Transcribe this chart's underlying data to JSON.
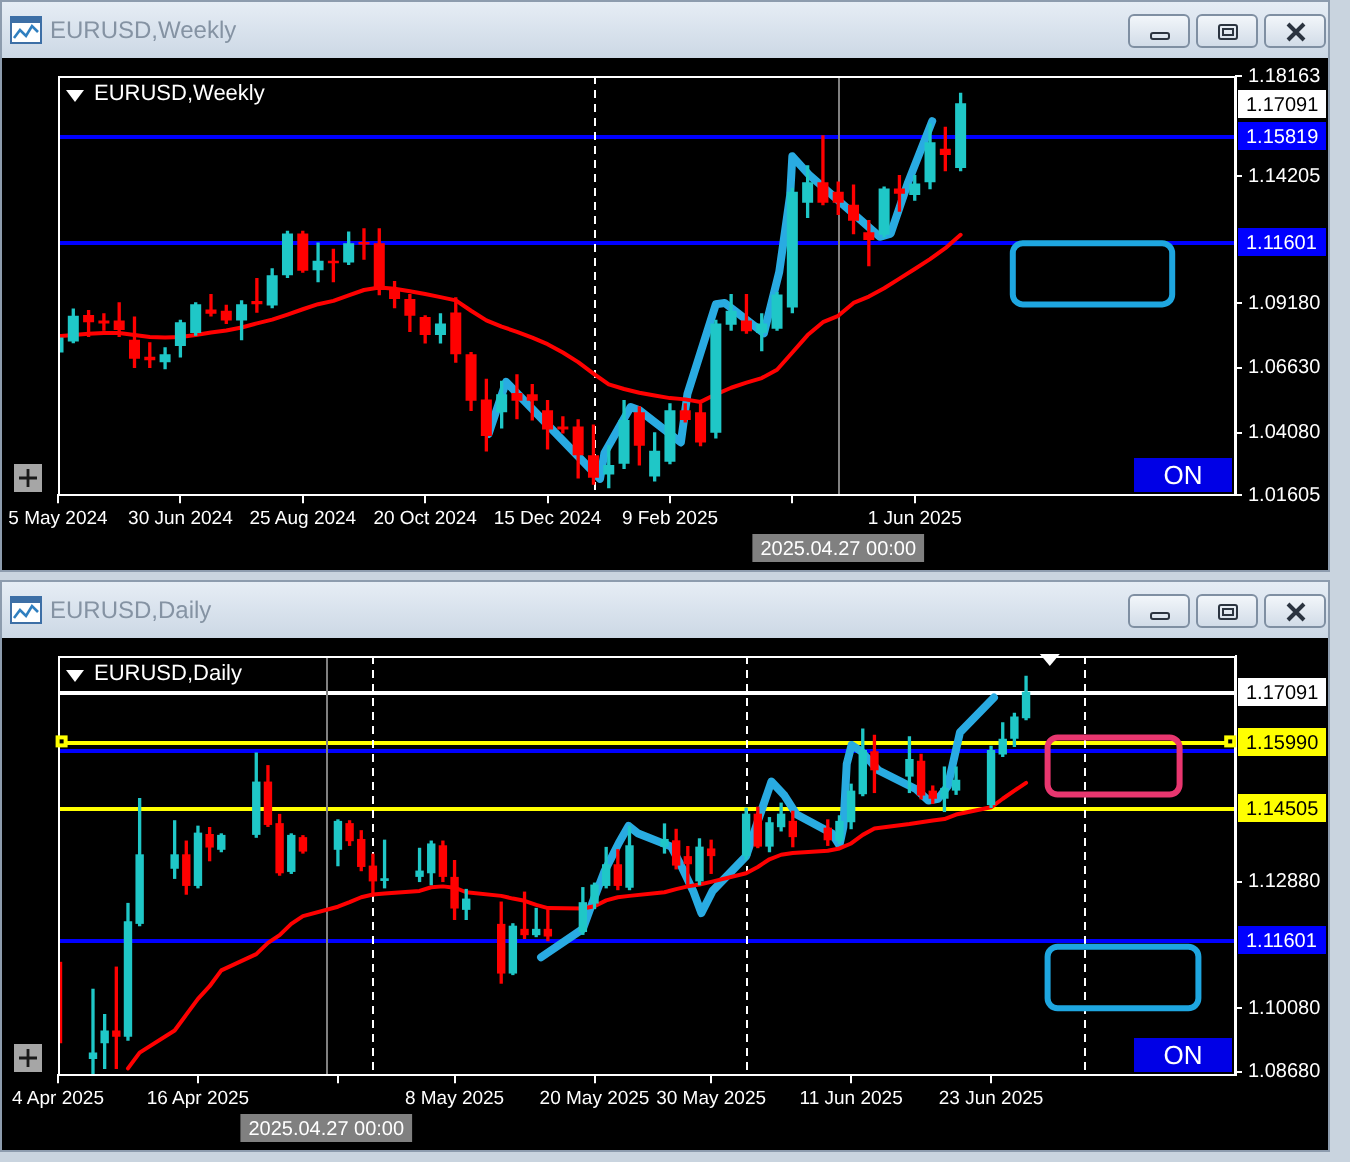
{
  "chart_data": [
    {
      "type": "candlestick",
      "title": "EURUSD,Weekly",
      "x": [
        "2024-05-05",
        "2024-05-12",
        "2024-05-19",
        "2024-05-26",
        "2024-06-02",
        "2024-06-09",
        "2024-06-16",
        "2024-06-23",
        "2024-06-30",
        "2024-07-07",
        "2024-07-14",
        "2024-07-21",
        "2024-07-28",
        "2024-08-04",
        "2024-08-11",
        "2024-08-18",
        "2024-08-25",
        "2024-09-01",
        "2024-09-08",
        "2024-09-15",
        "2024-09-22",
        "2024-09-29",
        "2024-10-06",
        "2024-10-13",
        "2024-10-20",
        "2024-10-27",
        "2024-11-03",
        "2024-11-10",
        "2024-11-17",
        "2024-11-24",
        "2024-12-01",
        "2024-12-08",
        "2024-12-15",
        "2024-12-22",
        "2024-12-29",
        "2025-01-05",
        "2025-01-12",
        "2025-01-19",
        "2025-01-26",
        "2025-02-02",
        "2025-02-09",
        "2025-02-16",
        "2025-02-23",
        "2025-03-02",
        "2025-03-09",
        "2025-03-16",
        "2025-03-23",
        "2025-03-30",
        "2025-04-06",
        "2025-04-13",
        "2025-04-20",
        "2025-04-27",
        "2025-05-04",
        "2025-05-11",
        "2025-05-18",
        "2025-05-25",
        "2025-06-01",
        "2025-06-08",
        "2025-06-15",
        "2025-06-22"
      ],
      "xlim": [
        "2024-05-05",
        "2025-10-26"
      ],
      "xticks": [
        {
          "value": "2024-05-05",
          "label": "5 May 2024"
        },
        {
          "value": "2024-06-30",
          "label": "30 Jun 2024"
        },
        {
          "value": "2024-08-25",
          "label": "25 Aug 2024"
        },
        {
          "value": "2024-10-20",
          "label": "20 Oct 2024"
        },
        {
          "value": "2024-12-15",
          "label": "15 Dec 2024"
        },
        {
          "value": "2025-02-09",
          "label": "9 Feb 2025"
        },
        {
          "value": "2025-04-06",
          "label": null
        },
        {
          "value": "2025-06-01",
          "label": "1 Jun 2025"
        }
      ],
      "ohlc": [
        [
          1.0724,
          1.0793,
          1.0712,
          1.0783
        ],
        [
          1.0768,
          1.0895,
          1.0763,
          1.0869
        ],
        [
          1.0872,
          1.0889,
          1.0788,
          1.0844
        ],
        [
          1.0851,
          1.0877,
          1.0813,
          1.0839
        ],
        [
          1.0851,
          1.092,
          1.0788,
          1.0813
        ],
        [
          1.0775,
          1.0864,
          1.0666,
          1.0699
        ],
        [
          1.0707,
          1.0762,
          1.0666,
          1.0694
        ],
        [
          1.0686,
          1.0742,
          1.0661,
          1.0717
        ],
        [
          1.075,
          1.0851,
          1.0707,
          1.0844
        ],
        [
          1.0801,
          1.092,
          1.0793,
          1.0915
        ],
        [
          1.0894,
          1.0953,
          1.0869,
          1.0877
        ],
        [
          1.0889,
          1.091,
          1.0839,
          1.0851
        ],
        [
          1.0851,
          1.0928,
          1.0775,
          1.0915
        ],
        [
          1.0928,
          1.1016,
          1.0884,
          1.0915
        ],
        [
          1.091,
          1.1054,
          1.0902,
          1.1029
        ],
        [
          1.1029,
          1.1202,
          1.1021,
          1.1194
        ],
        [
          1.1194,
          1.1202,
          1.1042,
          1.1047
        ],
        [
          1.1049,
          1.1156,
          1.1004,
          1.1087
        ],
        [
          1.1087,
          1.1131,
          1.1004,
          1.1077
        ],
        [
          1.108,
          1.1199,
          1.1072,
          1.1156
        ],
        [
          1.1161,
          1.1212,
          1.1093,
          1.1151
        ],
        [
          1.1156,
          1.1212,
          1.0953,
          1.0971
        ],
        [
          1.0971,
          1.1004,
          1.0902,
          1.0935
        ],
        [
          1.0935,
          1.0953,
          1.0808,
          1.0869
        ],
        [
          1.0864,
          1.0869,
          1.0762,
          1.0793
        ],
        [
          1.0793,
          1.0877,
          1.0762,
          1.0839
        ],
        [
          1.0882,
          1.094,
          1.0686,
          1.0717
        ],
        [
          1.0717,
          1.0724,
          1.0496,
          1.0534
        ],
        [
          1.0539,
          1.0618,
          1.0336,
          1.0394
        ],
        [
          1.0488,
          1.061,
          1.0427,
          1.0559
        ],
        [
          1.0564,
          1.0636,
          1.0463,
          1.0534
        ],
        [
          1.0559,
          1.0597,
          1.0458,
          1.0534
        ],
        [
          1.0496,
          1.0534,
          1.0344,
          1.042
        ],
        [
          1.0432,
          1.047,
          1.0407,
          1.042
        ],
        [
          1.0432,
          1.0458,
          1.0229,
          1.0318
        ],
        [
          1.0318,
          1.0437,
          1.0204,
          1.0229
        ],
        [
          1.0242,
          1.0356,
          1.0191,
          1.028
        ],
        [
          1.0285,
          1.0534,
          1.0267,
          1.0458
        ],
        [
          1.0488,
          1.0509,
          1.028,
          1.0356
        ],
        [
          1.0234,
          1.0407,
          1.0217,
          1.0336
        ],
        [
          1.0293,
          1.0521,
          1.0285,
          1.0496
        ],
        [
          1.0496,
          1.0521,
          1.045,
          1.0458
        ],
        [
          1.0488,
          1.0521,
          1.0356,
          1.0369
        ],
        [
          1.0407,
          1.0851,
          1.0387,
          1.0839
        ],
        [
          1.0834,
          1.0953,
          1.0813,
          1.0889
        ],
        [
          1.0851,
          1.0953,
          1.0801,
          1.0808
        ],
        [
          1.0801,
          1.0877,
          1.0732,
          1.0839
        ],
        [
          1.0818,
          1.0961,
          1.0813,
          1.0953
        ],
        [
          1.0902,
          1.1372,
          1.0882,
          1.1359
        ],
        [
          1.1316,
          1.1461,
          1.1258,
          1.1397
        ],
        [
          1.1397,
          1.158,
          1.1308,
          1.1316
        ],
        [
          1.1359,
          1.1397,
          1.127,
          1.1316
        ],
        [
          1.1308,
          1.1385,
          1.1194,
          1.1245
        ],
        [
          1.1199,
          1.1245,
          1.1067,
          1.1169
        ],
        [
          1.1189,
          1.1377,
          1.1181,
          1.1372
        ],
        [
          1.1372,
          1.1423,
          1.1283,
          1.1351
        ],
        [
          1.1346,
          1.1423,
          1.1326,
          1.1392
        ],
        [
          1.1397,
          1.1626,
          1.1372,
          1.1555
        ],
        [
          1.1529,
          1.1613,
          1.1443,
          1.1504
        ],
        [
          1.1453,
          1.1748,
          1.1443,
          1.1709
        ]
      ],
      "colors": [
        "#1fc7c7",
        "#1fc7c7",
        "#ff0000",
        "#ff0000",
        "#ff0000",
        "#ff0000",
        "#ff0000",
        "#1fc7c7",
        "#1fc7c7",
        "#1fc7c7",
        "#ff0000",
        "#ff0000",
        "#1fc7c7",
        "#ff0000",
        "#1fc7c7",
        "#1fc7c7",
        "#ff0000",
        "#1fc7c7",
        "#ff0000",
        "#1fc7c7",
        "#ff0000",
        "#ff0000",
        "#ff0000",
        "#ff0000",
        "#ff0000",
        "#1fc7c7",
        "#ff0000",
        "#ff0000",
        "#ff0000",
        "#1fc7c7",
        "#ff0000",
        "#ff0000",
        "#ff0000",
        "#ff0000",
        "#ff0000",
        "#ff0000",
        "#1fc7c7",
        "#1fc7c7",
        "#ff0000",
        "#1fc7c7",
        "#1fc7c7",
        "#ff0000",
        "#ff0000",
        "#1fc7c7",
        "#1fc7c7",
        "#ff0000",
        "#1fc7c7",
        "#1fc7c7",
        "#1fc7c7",
        "#1fc7c7",
        "#ff0000",
        "#ff0000",
        "#ff0000",
        "#ff0000",
        "#1fc7c7",
        "#ff0000",
        "#1fc7c7",
        "#1fc7c7",
        "#ff0000",
        "#1fc7c7"
      ],
      "series": [
        {
          "type": "line",
          "color": "#ff0000",
          "values": [
            1.0788,
            1.0793,
            1.0798,
            1.0801,
            1.0801,
            1.0793,
            1.0785,
            1.0783,
            1.0785,
            1.0793,
            1.0803,
            1.0811,
            1.0823,
            1.0839,
            1.0854,
            1.0874,
            1.0895,
            1.0915,
            1.0928,
            1.095,
            1.0971,
            1.0981,
            1.0976,
            1.0966,
            1.0955,
            1.0943,
            1.093,
            1.0889,
            1.0851,
            1.0826,
            1.0806,
            1.0783,
            1.0757,
            1.0724,
            1.0686,
            1.0641,
            1.0598,
            1.058,
            1.0565,
            1.0554,
            1.0544,
            1.0539,
            1.0529,
            1.0559,
            1.0585,
            1.0605,
            1.0623,
            1.0656,
            1.0724,
            1.0793,
            1.0844,
            1.0869,
            1.092,
            1.0945,
            1.0978,
            1.1016,
            1.1054,
            1.1093,
            1.1136,
            1.1189
          ]
        },
        {
          "type": "line",
          "color": "#29abe2",
          "x": [
            "2024-11-18",
            "2024-11-26",
            "2025-01-08",
            "2025-01-10",
            "2025-01-22",
            "2025-01-26",
            "2025-02-14",
            "2025-02-17",
            "2025-03-02",
            "2025-03-06",
            "2025-03-24",
            "2025-03-31",
            "2025-04-05",
            "2025-04-06",
            "2025-04-14",
            "2025-05-16",
            "2025-05-21",
            "2025-05-29",
            "2025-06-09"
          ],
          "values": [
            1.0402,
            1.0608,
            1.0225,
            1.0326,
            1.0509,
            1.0496,
            1.0369,
            1.056,
            1.0915,
            1.092,
            1.08,
            1.1042,
            1.1346,
            1.1499,
            1.1423,
            1.1181,
            1.1194,
            1.1397,
            1.1638
          ]
        }
      ],
      "marker": "none",
      "ylim": [
        1.01605,
        1.18163
      ],
      "yticks": [
        1.01605,
        {
          "value": 1.0408,
          "label": "1.04080"
        },
        {
          "value": 1.0663,
          "label": "1.06630"
        },
        {
          "value": 1.0918,
          "label": "1.09180"
        },
        1.14205,
        1.18163
      ],
      "ref_lines": [
        {
          "axis": "y",
          "value": 1.15819,
          "label": "1.15819",
          "color": "#0000ff"
        },
        {
          "axis": "y",
          "value": 1.11601,
          "label": "1.11601",
          "color": "#0000ff"
        },
        {
          "axis": "x",
          "value": "2025-01-05",
          "color": "#ffffff",
          "line_style": "dashed"
        },
        {
          "axis": "x",
          "value": "2025-04-27",
          "label": "2025.04.27 00:00",
          "color": "#808080"
        }
      ],
      "annotations": [
        {
          "text": "1.17091",
          "y": 1.17091
        },
        "ON"
      ]
    },
    {
      "type": "candlestick",
      "title": "EURUSD,Daily",
      "x": [
        "2025-04-04",
        "2025-04-07",
        "2025-04-08",
        "2025-04-09",
        "2025-04-10",
        "2025-04-11",
        "2025-04-14",
        "2025-04-15",
        "2025-04-16",
        "2025-04-17",
        "2025-04-18",
        "2025-04-21",
        "2025-04-22",
        "2025-04-23",
        "2025-04-24",
        "2025-04-25",
        "2025-04-28",
        "2025-04-29",
        "2025-04-30",
        "2025-05-01",
        "2025-05-02",
        "2025-05-05",
        "2025-05-06",
        "2025-05-07",
        "2025-05-08",
        "2025-05-09",
        "2025-05-12",
        "2025-05-13",
        "2025-05-14",
        "2025-05-15",
        "2025-05-16",
        "2025-05-19",
        "2025-05-20",
        "2025-05-21",
        "2025-05-22",
        "2025-05-23",
        "2025-05-26",
        "2025-05-27",
        "2025-05-28",
        "2025-05-29",
        "2025-05-30",
        "2025-06-02",
        "2025-06-03",
        "2025-06-04",
        "2025-06-05",
        "2025-06-06",
        "2025-06-09",
        "2025-06-10",
        "2025-06-11",
        "2025-06-12",
        "2025-06-13",
        "2025-06-16",
        "2025-06-17",
        "2025-06-18",
        "2025-06-19",
        "2025-06-20",
        "2025-06-23",
        "2025-06-24",
        "2025-06-25",
        "2025-06-26"
      ],
      "xlim": [
        "2025-04-04",
        "2025-07-14"
      ],
      "xticks": [
        {
          "value": "2025-04-04",
          "label": "4 Apr 2025"
        },
        {
          "value": "2025-04-16",
          "label": "16 Apr 2025"
        },
        {
          "value": "2025-04-28",
          "label": null
        },
        {
          "value": "2025-05-08",
          "label": "8 May 2025"
        },
        {
          "value": "2025-05-20",
          "label": "20 May 2025"
        },
        {
          "value": "2025-05-30",
          "label": "30 May 2025"
        },
        {
          "value": "2025-06-11",
          "label": "11 Jun 2025"
        },
        {
          "value": "2025-06-23",
          "label": "23 Jun 2025"
        }
      ],
      "ohlc": [
        [
          1.1111,
          1.112,
          1.0924,
          1.0931
        ],
        [
          1.0896,
          1.105,
          1.0861,
          1.091
        ],
        [
          1.0931,
          1.0994,
          1.0875,
          1.0959
        ],
        [
          1.0959,
          1.1099,
          1.0875,
          1.0945
        ],
        [
          1.0945,
          1.124,
          1.0938,
          1.1201
        ],
        [
          1.1195,
          1.1472,
          1.1191,
          1.1349
        ],
        [
          1.1317,
          1.1423,
          1.1296,
          1.1349
        ],
        [
          1.1349,
          1.1378,
          1.1261,
          1.1279
        ],
        [
          1.1279,
          1.1411,
          1.1275,
          1.1397
        ],
        [
          1.1394,
          1.1408,
          1.1335,
          1.1364
        ],
        [
          1.1359,
          1.1394,
          1.1355,
          1.1392
        ],
        [
          1.1392,
          1.1573,
          1.1387,
          1.151
        ],
        [
          1.151,
          1.1545,
          1.1411,
          1.1414
        ],
        [
          1.1418,
          1.1437,
          1.1303,
          1.1307
        ],
        [
          1.131,
          1.1394,
          1.1307,
          1.1392
        ],
        [
          1.1387,
          1.139,
          1.1352,
          1.1355
        ],
        [
          1.1359,
          1.1425,
          1.1324,
          1.1423
        ],
        [
          1.1418,
          1.1423,
          1.1369,
          1.1378
        ],
        [
          1.1383,
          1.1401,
          1.1313,
          1.1321
        ],
        [
          1.1324,
          1.1349,
          1.1257,
          1.1289
        ],
        [
          1.129,
          1.138,
          1.1275,
          1.1296
        ],
        [
          1.1299,
          1.1362,
          1.1289,
          1.1313
        ],
        [
          1.1307,
          1.1378,
          1.1282,
          1.1373
        ],
        [
          1.1369,
          1.1378,
          1.1289,
          1.1299
        ],
        [
          1.1299,
          1.1335,
          1.1205,
          1.1229
        ],
        [
          1.1226,
          1.1271,
          1.1205,
          1.1251
        ],
        [
          1.1195,
          1.1243,
          1.1064,
          1.1085
        ],
        [
          1.1085,
          1.1195,
          1.1083,
          1.1191
        ],
        [
          1.1184,
          1.1265,
          1.1163,
          1.117
        ],
        [
          1.117,
          1.1229,
          1.1167,
          1.1184
        ],
        [
          1.1184,
          1.1226,
          1.1158,
          1.1167
        ],
        [
          1.1177,
          1.1275,
          1.1172,
          1.1243
        ],
        [
          1.124,
          1.1285,
          1.1229,
          1.1282
        ],
        [
          1.1279,
          1.1364,
          1.1275,
          1.1327
        ],
        [
          1.1327,
          1.1359,
          1.1271,
          1.1279
        ],
        [
          1.1275,
          1.1411,
          1.1271,
          1.1369
        ],
        [
          1.1366,
          1.1416,
          1.1352,
          1.1383
        ],
        [
          1.138,
          1.1404,
          1.1317,
          1.1324
        ],
        [
          1.1345,
          1.1366,
          1.1282,
          1.1327
        ],
        [
          1.1289,
          1.1383,
          1.1282,
          1.1366
        ],
        [
          1.1362,
          1.138,
          1.1307,
          1.1345
        ],
        [
          1.1345,
          1.1451,
          1.1338,
          1.1439
        ],
        [
          1.1439,
          1.1453,
          1.1364,
          1.1366
        ],
        [
          1.1366,
          1.143,
          1.1355,
          1.142
        ],
        [
          1.1409,
          1.1462,
          1.1401,
          1.1439
        ],
        [
          1.1423,
          1.1444,
          1.1366,
          1.1387
        ],
        [
          1.1408,
          1.1425,
          1.1369,
          1.138
        ],
        [
          1.1378,
          1.1434,
          1.1373,
          1.1423
        ],
        [
          1.142,
          1.1504,
          1.1406,
          1.149
        ],
        [
          1.1482,
          1.1626,
          1.1479,
          1.158
        ],
        [
          1.1577,
          1.1612,
          1.1486,
          1.1535
        ],
        [
          1.1521,
          1.1609,
          1.1486,
          1.156
        ],
        [
          1.1556,
          1.157,
          1.1472,
          1.1479
        ],
        [
          1.149,
          1.15,
          1.1462,
          1.1472
        ],
        [
          1.1472,
          1.1542,
          1.1444,
          1.1496
        ],
        [
          1.149,
          1.1542,
          1.1482,
          1.1514
        ],
        [
          1.1458,
          1.1588,
          1.1453,
          1.158
        ],
        [
          1.157,
          1.164,
          1.1566,
          1.1605
        ],
        [
          1.1605,
          1.1661,
          1.1588,
          1.1654
        ],
        [
          1.165,
          1.1743,
          1.1647,
          1.1709
        ]
      ],
      "colors": [
        "#ff0000",
        "#1fc7c7",
        "#1fc7c7",
        "#ff0000",
        "#1fc7c7",
        "#1fc7c7",
        "#1fc7c7",
        "#ff0000",
        "#1fc7c7",
        "#ff0000",
        "#1fc7c7",
        "#1fc7c7",
        "#ff0000",
        "#ff0000",
        "#1fc7c7",
        "#ff0000",
        "#1fc7c7",
        "#ff0000",
        "#ff0000",
        "#ff0000",
        "#1fc7c7",
        "#1fc7c7",
        "#1fc7c7",
        "#ff0000",
        "#ff0000",
        "#1fc7c7",
        "#ff0000",
        "#1fc7c7",
        "#ff0000",
        "#1fc7c7",
        "#ff0000",
        "#1fc7c7",
        "#1fc7c7",
        "#1fc7c7",
        "#ff0000",
        "#1fc7c7",
        "#1fc7c7",
        "#ff0000",
        "#ff0000",
        "#1fc7c7",
        "#ff0000",
        "#1fc7c7",
        "#ff0000",
        "#1fc7c7",
        "#1fc7c7",
        "#ff0000",
        "#ff0000",
        "#1fc7c7",
        "#1fc7c7",
        "#1fc7c7",
        "#ff0000",
        "#1fc7c7",
        "#ff0000",
        "#ff0000",
        "#1fc7c7",
        "#1fc7c7",
        "#1fc7c7",
        "#1fc7c7",
        "#1fc7c7",
        "#1fc7c7"
      ],
      "series": [
        {
          "type": "line",
          "color": "#ff0000",
          "values": [
            null,
            null,
            null,
            null,
            1.0875,
            1.091,
            1.0959,
            1.0994,
            1.1029,
            1.1057,
            1.1092,
            1.1128,
            1.1153,
            1.117,
            1.1195,
            1.1212,
            1.1233,
            1.1243,
            1.1254,
            1.126,
            1.1262,
            1.1268,
            1.1276,
            1.1278,
            1.1275,
            1.1265,
            1.1257,
            1.1251,
            1.1246,
            1.1237,
            1.123,
            1.1229,
            1.1234,
            1.1247,
            1.1254,
            1.1257,
            1.1265,
            1.1272,
            1.1278,
            1.1282,
            1.1288,
            1.1307,
            1.1321,
            1.1338,
            1.1348,
            1.1352,
            1.1357,
            1.1362,
            1.1373,
            1.1392,
            1.1406,
            1.1416,
            1.142,
            1.1424,
            1.1427,
            1.1437,
            1.1453,
            1.1472,
            1.149,
            1.1507
          ]
        },
        {
          "type": "line",
          "color": "#29abe2",
          "x": [
            "2025-05-15T10:00",
            "2025-05-19",
            "2025-05-19T19:00",
            "2025-05-20T20:00",
            "2025-05-22T02:00",
            "2025-05-22T22:00",
            "2025-05-23T18:00",
            "2025-05-26T14:00",
            "2025-05-27T10:00",
            "2025-05-28T11:00",
            "2025-05-29T04:00",
            "2025-05-30T03:00",
            "2025-06-02",
            "2025-06-03",
            "2025-06-04T04:00",
            "2025-06-05T07:00",
            "2025-06-06T08:00",
            "2025-06-09T09:00",
            "2025-06-10",
            "2025-06-10T08:00",
            "2025-06-10T15:00",
            "2025-06-11T01:00",
            "2025-06-11T21:00",
            "2025-06-13T08:00",
            "2025-06-16T14:00",
            "2025-06-17T15:00",
            "2025-06-18T11:00",
            "2025-06-19T07:00",
            "2025-06-20T08:00",
            "2025-06-23T06:00"
          ],
          "values": [
            1.1121,
            1.1184,
            1.124,
            1.131,
            1.1374,
            1.1412,
            1.1395,
            1.1366,
            1.1324,
            1.1268,
            1.1219,
            1.1268,
            1.1345,
            1.1422,
            1.151,
            1.1479,
            1.1437,
            1.1395,
            1.1369,
            1.1409,
            1.1549,
            1.1591,
            1.1577,
            1.1535,
            1.1493,
            1.1468,
            1.1472,
            1.15,
            1.1619,
            1.1696
          ]
        }
      ],
      "marker": "none",
      "ylim": [
        1.086,
        1.1788
      ],
      "yticks": [
        {
          "value": 1.0868,
          "label": "1.08680"
        },
        {
          "value": 1.1008,
          "label": "1.10080"
        },
        {
          "value": 1.1288,
          "label": "1.12880"
        }
      ],
      "ref_lines": [
        {
          "axis": "y",
          "value": 1.17091,
          "label": "1.17091",
          "color": "#ffffff"
        },
        {
          "axis": "y",
          "value": 1.1599,
          "label": "1.15990",
          "color": "#ffff00"
        },
        {
          "axis": "y",
          "value": 1.15819,
          "color": "#0000ff"
        },
        {
          "axis": "y",
          "value": 1.14505,
          "label": "1.14505",
          "color": "#ffff00"
        },
        {
          "axis": "y",
          "value": 1.11601,
          "label": "1.11601",
          "color": "#0000ff"
        },
        {
          "axis": "x",
          "value": "2025-05-01",
          "color": "#ffffff",
          "line_style": "dashed"
        },
        {
          "axis": "x",
          "value": "2025-06-02",
          "color": "#ffffff",
          "line_style": "dashed"
        },
        {
          "axis": "x",
          "value": "2025-07-01",
          "color": "#ffffff",
          "line_style": "dashed"
        },
        {
          "axis": "x",
          "value": "2025-04-27",
          "label": "2025.04.27 00:00",
          "color": "#808080"
        }
      ],
      "annotations": [
        "ON"
      ]
    }
  ]
}
